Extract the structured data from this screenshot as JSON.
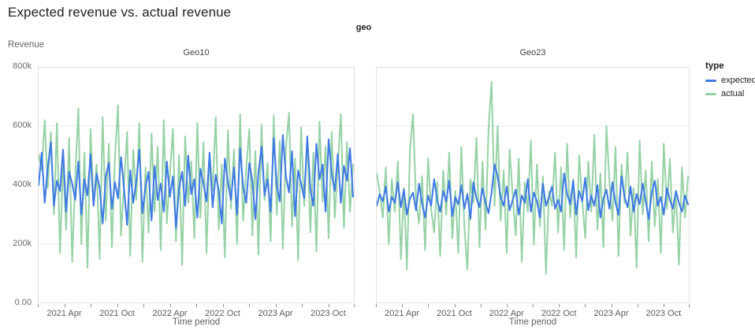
{
  "page": {
    "title": "Expected revenue vs. actual revenue"
  },
  "facet_header": "geo",
  "y_axis": {
    "title": "Revenue",
    "tick_labels": [
      "0.00",
      "200k",
      "400k",
      "600k",
      "800k"
    ]
  },
  "x_axis": {
    "title": "Time period",
    "tick_labels": [
      "2021 Apr",
      "2021 Oct",
      "2022 Apr",
      "2022 Oct",
      "2023 Apr",
      "2023 Oct"
    ]
  },
  "legend": {
    "title": "type",
    "items": [
      {
        "label": "expected",
        "color": "#3d79e6"
      },
      {
        "label": "actual",
        "color": "#96d2a6"
      }
    ]
  },
  "chart_data": [
    {
      "type": "line",
      "facet": "Geo10",
      "title": "Geo10",
      "xlabel": "Time period",
      "ylabel": "Revenue",
      "x_start": "2021 Jan",
      "x_end": "2023 Dec",
      "x_tick_labels": [
        "2021 Apr",
        "2021 Oct",
        "2022 Apr",
        "2022 Oct",
        "2023 Apr",
        "2023 Oct"
      ],
      "ylim": [
        0,
        800000
      ],
      "y_unit": "thousands",
      "grid": true,
      "series": [
        {
          "name": "expected",
          "color": "#3d79e6",
          "values_k": [
            400,
            510,
            340,
            460,
            545,
            330,
            415,
            380,
            520,
            310,
            445,
            405,
            350,
            480,
            300,
            420,
            365,
            505,
            330,
            440,
            390,
            270,
            430,
            475,
            320,
            410,
            355,
            495,
            385,
            265,
            450,
            340,
            415,
            520,
            305,
            395,
            445,
            280,
            465,
            350,
            405,
            310,
            480,
            360,
            430,
            255,
            390,
            445,
            330,
            500,
            370,
            420,
            290,
            455,
            405,
            345,
            510,
            325,
            435,
            380,
            270,
            490,
            410,
            350,
            460,
            300,
            525,
            395,
            340,
            475,
            415,
            285,
            440,
            530,
            365,
            420,
            310,
            560,
            400,
            345,
            570,
            430,
            375,
            515,
            295,
            450,
            405,
            355,
            565,
            385,
            330,
            540,
            420,
            470,
            310,
            555,
            435,
            380,
            505,
            340,
            465,
            415,
            525,
            360
          ]
        },
        {
          "name": "actual",
          "color": "#96d2a6",
          "values_k": [
            505,
            450,
            620,
            390,
            580,
            300,
            610,
            170,
            480,
            250,
            560,
            140,
            430,
            660,
            200,
            510,
            120,
            590,
            330,
            470,
            150,
            630,
            280,
            540,
            190,
            490,
            670,
            230,
            410,
            580,
            160,
            520,
            350,
            610,
            140,
            460,
            240,
            575,
            310,
            530,
            180,
            620,
            270,
            440,
            590,
            210,
            500,
            130,
            565,
            340,
            480,
            220,
            610,
            290,
            545,
            170,
            505,
            380,
            630,
            250,
            470,
            155,
            585,
            320,
            520,
            200,
            640,
            280,
            455,
            590,
            230,
            515,
            165,
            605,
            350,
            475,
            210,
            635,
            300,
            550,
            185,
            525,
            645,
            260,
            490,
            145,
            595,
            330,
            560,
            240,
            510,
            175,
            615,
            345,
            530,
            220,
            580,
            290,
            465,
            640,
            255,
            545,
            310,
            470
          ]
        }
      ]
    },
    {
      "type": "line",
      "facet": "Geo23",
      "title": "Geo23",
      "xlabel": "Time period",
      "ylabel": "Revenue",
      "x_start": "2021 Jan",
      "x_end": "2023 Dec",
      "x_tick_labels": [
        "2021 Apr",
        "2021 Oct",
        "2022 Apr",
        "2022 Oct",
        "2023 Apr",
        "2023 Oct"
      ],
      "ylim": [
        0,
        800000
      ],
      "y_unit": "thousands",
      "grid": true,
      "series": [
        {
          "name": "expected",
          "color": "#3d79e6",
          "values_k": [
            330,
            370,
            345,
            395,
            310,
            360,
            340,
            410,
            325,
            385,
            300,
            355,
            375,
            315,
            405,
            340,
            290,
            365,
            330,
            420,
            350,
            310,
            380,
            345,
            415,
            295,
            360,
            335,
            400,
            320,
            370,
            285,
            410,
            355,
            325,
            390,
            340,
            305,
            375,
            470,
            430,
            360,
            330,
            395,
            315,
            350,
            385,
            300,
            365,
            340,
            420,
            310,
            375,
            345,
            290,
            405,
            330,
            360,
            395,
            320,
            350,
            310,
            440,
            370,
            335,
            415,
            300,
            380,
            345,
            425,
            315,
            365,
            330,
            400,
            290,
            355,
            385,
            320,
            410,
            340,
            300,
            430,
            360,
            325,
            395,
            310,
            370,
            335,
            405,
            345,
            285,
            375,
            415,
            330,
            360,
            300,
            390,
            350,
            320,
            380,
            340,
            310,
            365,
            335
          ]
        },
        {
          "name": "actual",
          "color": "#96d2a6",
          "values_k": [
            440,
            380,
            290,
            460,
            200,
            420,
            310,
            480,
            150,
            390,
            115,
            520,
            640,
            350,
            270,
            430,
            180,
            490,
            320,
            240,
            410,
            160,
            450,
            300,
            510,
            220,
            380,
            170,
            530,
            260,
            115,
            420,
            340,
            560,
            190,
            480,
            250,
            590,
            750,
            330,
            600,
            280,
            450,
            170,
            520,
            360,
            230,
            490,
            140,
            410,
            310,
            550,
            200,
            470,
            260,
            430,
            100,
            380,
            330,
            510,
            240,
            460,
            180,
            540,
            290,
            420,
            155,
            500,
            350,
            220,
            480,
            310,
            570,
            250,
            440,
            190,
            600,
            410,
            280,
            530,
            160,
            470,
            340,
            510,
            230,
            390,
            120,
            550,
            300,
            450,
            210,
            480,
            260,
            420,
            170,
            540,
            320,
            490,
            240,
            380,
            130,
            460,
            290,
            430
          ]
        }
      ]
    }
  ]
}
